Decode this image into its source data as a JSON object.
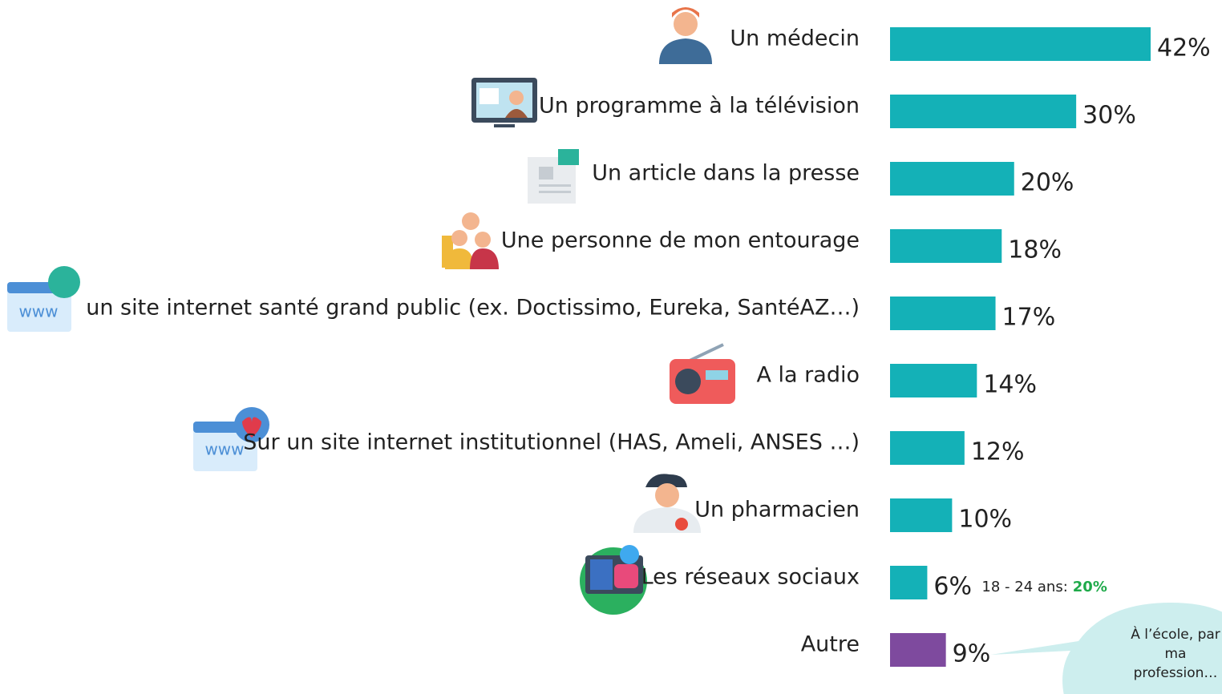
{
  "chart_data": {
    "type": "bar",
    "orientation": "horizontal",
    "categories": [
      "Un médecin",
      "Un programme à la télévision",
      "Un article dans la presse",
      "Une personne de mon entourage",
      "un site internet santé grand public (ex. Doctissimo, Eureka, SantéAZ…)",
      "A la radio",
      "Sur un site internet institutionnel (HAS, Ameli, ANSES …)",
      "Un pharmacien",
      "Les réseaux sociaux",
      "Autre"
    ],
    "values": [
      42,
      30,
      20,
      18,
      17,
      14,
      12,
      10,
      6,
      9
    ],
    "value_labels": [
      "42%",
      "30%",
      "20%",
      "18%",
      "17%",
      "14%",
      "12%",
      "10%",
      "6%",
      "9%"
    ],
    "colors": [
      "#14b1b7",
      "#14b1b7",
      "#14b1b7",
      "#14b1b7",
      "#14b1b7",
      "#14b1b7",
      "#14b1b7",
      "#14b1b7",
      "#14b1b7",
      "#7e4a9e"
    ],
    "annotation": {
      "text": "18 - 24 ans:",
      "highlight": "20%",
      "highlight_color": "#1faa4a"
    },
    "callout": {
      "lines": [
        "À l’école, par",
        "ma",
        "profession…"
      ],
      "color": "#cdeeee"
    }
  }
}
